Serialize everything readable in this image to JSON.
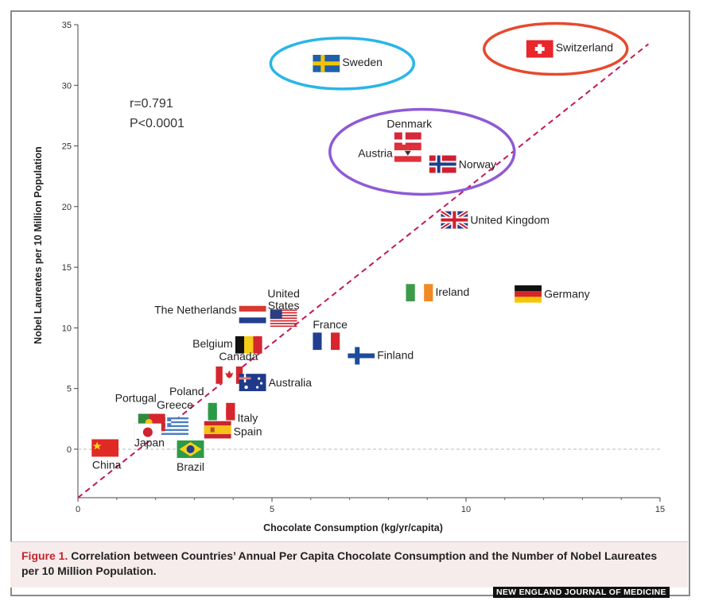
{
  "chart_data": {
    "type": "scatter",
    "xlabel": "Chocolate Consumption (kg/yr/capita)",
    "ylabel": "Nobel Laureates per 10 Million Population",
    "xlim": [
      0,
      15
    ],
    "ylim": [
      -4,
      35
    ],
    "xticks": [
      0,
      5,
      10,
      15
    ],
    "yticks": [
      0,
      5,
      10,
      15,
      20,
      25,
      30,
      35
    ],
    "xtick_labels": [
      "0",
      "5",
      "10",
      "15"
    ],
    "ytick_labels": [
      "0",
      "5",
      "10",
      "15",
      "20",
      "25",
      "30",
      "35"
    ],
    "annotation": {
      "r": "r=0.791",
      "p": "P<0.0001"
    },
    "trendline": {
      "x": [
        0,
        14.7
      ],
      "y": [
        -4,
        33.4
      ],
      "color": "#c2185b"
    },
    "zero_line": {
      "y": 0,
      "color": "#bbbbbb"
    },
    "points": [
      {
        "country": "Switzerland",
        "x": 11.9,
        "y": 33.0,
        "flag": "switzerland",
        "highlight": "#e64a2e"
      },
      {
        "country": "Sweden",
        "x": 6.4,
        "y": 31.8,
        "flag": "sweden",
        "highlight": "#29b6e8"
      },
      {
        "country": "Denmark",
        "x": 8.5,
        "y": 25.4,
        "flag": "denmark",
        "highlight": "#8e5ad6"
      },
      {
        "country": "Austria",
        "x": 8.5,
        "y": 24.4,
        "flag": "austria",
        "highlight": "#8e5ad6"
      },
      {
        "country": "Norway",
        "x": 9.4,
        "y": 23.5,
        "flag": "norway",
        "highlight": "#8e5ad6"
      },
      {
        "country": "United Kingdom",
        "x": 9.7,
        "y": 18.9,
        "flag": "uk"
      },
      {
        "country": "Ireland",
        "x": 8.8,
        "y": 12.9,
        "flag": "ireland"
      },
      {
        "country": "Germany",
        "x": 11.6,
        "y": 12.8,
        "flag": "germany"
      },
      {
        "country": "The Netherlands",
        "x": 4.5,
        "y": 11.1,
        "flag": "netherlands"
      },
      {
        "country": "United States",
        "x": 5.3,
        "y": 10.8,
        "flag": "usa"
      },
      {
        "country": "France",
        "x": 6.4,
        "y": 8.9,
        "flag": "france"
      },
      {
        "country": "Finland",
        "x": 7.3,
        "y": 7.7,
        "flag": "finland"
      },
      {
        "country": "Belgium",
        "x": 4.4,
        "y": 8.6,
        "flag": "belgium"
      },
      {
        "country": "Canada",
        "x": 3.9,
        "y": 6.1,
        "flag": "canada"
      },
      {
        "country": "Australia",
        "x": 4.5,
        "y": 5.5,
        "flag": "australia"
      },
      {
        "country": "Poland",
        "x": 3.7,
        "y": 3.4,
        "flag": "poland"
      },
      {
        "country": "Italy",
        "x": 3.7,
        "y": 3.1,
        "flag": "italy"
      },
      {
        "country": "Spain",
        "x": 3.6,
        "y": 1.6,
        "flag": "spain"
      },
      {
        "country": "Greece",
        "x": 2.5,
        "y": 1.9,
        "flag": "greece"
      },
      {
        "country": "Portugal",
        "x": 1.9,
        "y": 2.2,
        "flag": "portugal"
      },
      {
        "country": "Japan",
        "x": 1.8,
        "y": 1.4,
        "flag": "japan"
      },
      {
        "country": "Brazil",
        "x": 2.9,
        "y": 0.0,
        "flag": "brazil"
      },
      {
        "country": "China",
        "x": 0.7,
        "y": 0.1,
        "flag": "china"
      }
    ]
  },
  "caption": {
    "figure_number": "Figure 1.",
    "text": "Correlation between Countries’ Annual Per Capita Chocolate Consumption and the Number of Nobel Laureates per 10 Million Population."
  },
  "journal": "NEW ENGLAND JOURNAL OF MEDICINE"
}
